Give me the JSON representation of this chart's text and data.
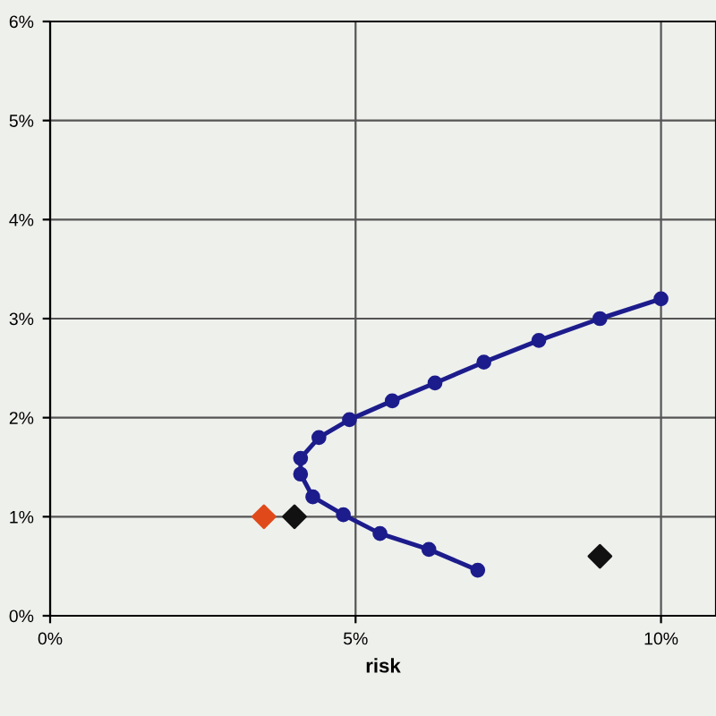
{
  "chart_data": {
    "type": "line",
    "xlabel": "risk",
    "xlim": [
      0,
      10.9
    ],
    "ylim": [
      0,
      6
    ],
    "xticks": [
      {
        "value": 0,
        "label": "0%"
      },
      {
        "value": 5,
        "label": "5%"
      },
      {
        "value": 10,
        "label": "10%"
      }
    ],
    "yticks": [
      {
        "value": 0,
        "label": "0%"
      },
      {
        "value": 1,
        "label": "1%"
      },
      {
        "value": 2,
        "label": "2%"
      },
      {
        "value": 3,
        "label": "3%"
      },
      {
        "value": 4,
        "label": "4%"
      },
      {
        "value": 5,
        "label": "5%"
      },
      {
        "value": 6,
        "label": "6%"
      }
    ],
    "grid": true,
    "legend": false,
    "series": [
      {
        "color": "#1c1c8c",
        "marker": "circle",
        "line_style": "solid",
        "x": [
          7.0,
          6.2,
          5.4,
          4.8,
          4.3,
          4.1,
          4.1,
          4.4,
          4.9,
          5.6,
          6.3,
          7.1,
          8.0,
          9.0,
          10.0
        ],
        "values": [
          0.46,
          0.67,
          0.83,
          1.02,
          1.2,
          1.43,
          1.59,
          1.8,
          1.98,
          2.17,
          2.35,
          2.56,
          2.78,
          3.0,
          3.2
        ]
      },
      {
        "type": "scatter",
        "color": "#111111",
        "marker": "diamond",
        "x": [
          4.0,
          9.0
        ],
        "values": [
          1.0,
          0.6
        ]
      },
      {
        "type": "scatter",
        "color": "#e04a1a",
        "marker": "diamond",
        "x": [
          3.5
        ],
        "values": [
          1.0
        ]
      }
    ]
  }
}
